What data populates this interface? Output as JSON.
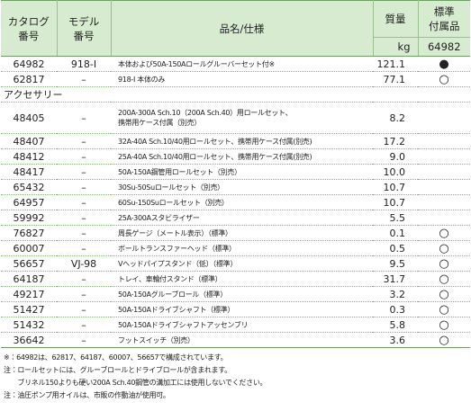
{
  "header": {
    "catalog_no": [
      "カタログ",
      "番号"
    ],
    "model_no": [
      "モデル",
      "番号"
    ],
    "name": "品名/仕様",
    "weight": [
      "質量",
      "kg"
    ],
    "standard": [
      "標準",
      "付属品",
      "64982"
    ]
  },
  "main_rows": [
    {
      "catalog": "64982",
      "model": "918-I",
      "name": [
        "本体および50A-150Aロールグルーバーセット付※"
      ],
      "weight": "121.1",
      "std": "●"
    },
    {
      "catalog": "62817",
      "model": "–",
      "name": [
        "918-I 本体のみ"
      ],
      "weight": "77.1",
      "std": "○"
    }
  ],
  "accessories_label": "アクセサリー",
  "accessory_rows": [
    {
      "catalog": "48405",
      "model": "–",
      "name": [
        "200A-300A Sch.10（200A Sch.40）用ロールセット、",
        "携帯用ケース付属（別売）"
      ],
      "weight": "8.2"
    },
    {
      "catalog": "48407",
      "model": "–",
      "name": [
        "32A-40A Sch.10/40用ロールセット、携帯用ケース付属(別売)"
      ],
      "weight": "17.2"
    },
    {
      "catalog": "48412",
      "model": "–",
      "name": [
        "25A-40A Sch.10/40用ロールセット、携帯用ケース付属(別売)"
      ],
      "weight": "9.0"
    },
    {
      "catalog": "48417",
      "model": "–",
      "name": [
        "50A-150A鋼管用ロールセット（別売）"
      ],
      "weight": "10.0"
    },
    {
      "catalog": "65432",
      "model": "–",
      "name": [
        "30Su-50Suロールセット（別売）"
      ],
      "weight": "10.7"
    },
    {
      "catalog": "64957",
      "model": "–",
      "name": [
        "60Su-150Suロールセット（別売）"
      ],
      "weight": "10.7"
    },
    {
      "catalog": "59992",
      "model": "–",
      "name": [
        "25A-300Aスタビライザー"
      ],
      "weight": "5.5"
    },
    {
      "catalog": "76827",
      "model": "–",
      "name": [
        "周長ゲージ（メートル表示）（標準）"
      ],
      "weight": "0.1",
      "std": "○"
    },
    {
      "catalog": "60007",
      "model": "–",
      "name": [
        "ボールトランスファーヘッド（標準）"
      ],
      "weight": "0.5",
      "std": "○"
    },
    {
      "catalog": "56657",
      "model": "VJ-98",
      "name": [
        "Vヘッドパイプスタンド（低）（標準）"
      ],
      "weight": "9.5",
      "std": "○"
    },
    {
      "catalog": "64187",
      "model": "–",
      "name": [
        "トレイ、車輪付スタンド（標準）"
      ],
      "weight": "31.7",
      "std": "○"
    },
    {
      "catalog": "49217",
      "model": "–",
      "name": [
        "50A-150Aグルーブロール（標準）"
      ],
      "weight": "3.2",
      "std": "○"
    },
    {
      "catalog": "51427",
      "model": "–",
      "name": [
        "50A-150Aドライブシャフト（標準）"
      ],
      "weight": "0.3",
      "std": "○"
    },
    {
      "catalog": "51432",
      "model": "–",
      "name": [
        "50A-150Aドライブシャフトアッセンブリ"
      ],
      "weight": "5.8",
      "std": "○"
    },
    {
      "catalog": "36642",
      "model": "–",
      "name": [
        "フットスイッチ（別売）"
      ],
      "weight": "3.6",
      "std": "○"
    }
  ],
  "notes": [
    "※：64982は、62817、64187、60007、56657で構成されています。",
    "注：ロールセットには、グルーブロールとドライブロールが含まれます。",
    "　　ブリネル150よりも硬い200A Sch.40鋼管の溝加工には使用しないでください。",
    "注：油圧ポンプ用オイルは、市販の作動油が使用可。"
  ]
}
